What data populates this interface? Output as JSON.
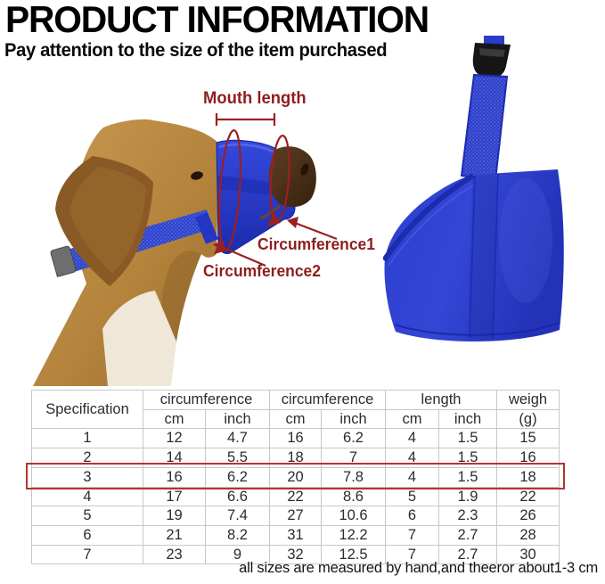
{
  "page": {
    "title": "PRODUCT INFORMATION",
    "subtitle": "Pay attention to the size of the item purchased",
    "footnote": "all sizes are measured by hand,and theeror about1-3 cm"
  },
  "diagram": {
    "mouth_length_label": "Mouth length",
    "circumference1_label": "Circumference1",
    "circumference2_label": "Circumference2",
    "annotation_color": "#8e1e1e",
    "muzzle_blue": "#2b3ccc",
    "highlight_red": "#b5342c"
  },
  "size_table": {
    "group_headers": {
      "specification": "Specification",
      "circumference_a": "circumference",
      "circumference_b": "circumference",
      "length": "length",
      "weight": "weigh"
    },
    "unit_headers": {
      "cm_a": "cm",
      "inch_a": "inch",
      "cm_b": "cm",
      "inch_b": "inch",
      "cm_c": "cm",
      "inch_c": "inch",
      "g": "(g)"
    },
    "rows": [
      [
        "1",
        "12",
        "4.7",
        "16",
        "6.2",
        "4",
        "1.5",
        "15"
      ],
      [
        "2",
        "14",
        "5.5",
        "18",
        "7",
        "4",
        "1.5",
        "16"
      ],
      [
        "3",
        "16",
        "6.2",
        "20",
        "7.8",
        "4",
        "1.5",
        "18"
      ],
      [
        "4",
        "17",
        "6.6",
        "22",
        "8.6",
        "5",
        "1.9",
        "22"
      ],
      [
        "5",
        "19",
        "7.4",
        "27",
        "10.6",
        "6",
        "2.3",
        "26"
      ],
      [
        "6",
        "21",
        "8.2",
        "31",
        "12.2",
        "7",
        "2.7",
        "28"
      ],
      [
        "7",
        "23",
        "9",
        "32",
        "12.5",
        "7",
        "2.7",
        "30"
      ]
    ],
    "highlighted_row": "3"
  }
}
